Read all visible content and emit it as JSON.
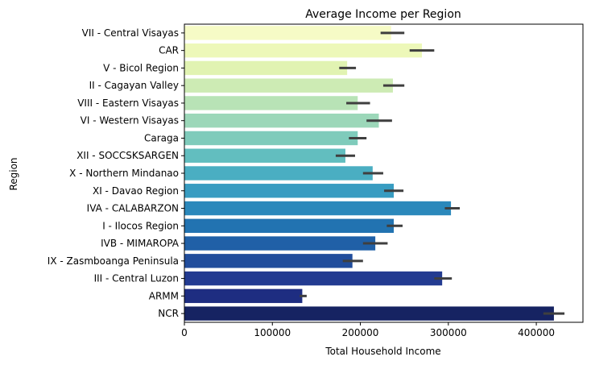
{
  "chart_data": {
    "type": "bar",
    "orientation": "horizontal",
    "title": "Average Income per Region",
    "xlabel": "Total Household Income",
    "ylabel": "Region",
    "xlim": [
      0,
      453000
    ],
    "xticks": [
      0,
      100000,
      200000,
      300000,
      400000
    ],
    "xtick_labels": [
      "0",
      "100000",
      "200000",
      "300000",
      "400000"
    ],
    "grid": false,
    "categories": [
      "VII - Central Visayas",
      "CAR",
      "V - Bicol Region",
      "II - Cagayan Valley",
      "VIII - Eastern Visayas",
      "VI - Western Visayas",
      "Caraga",
      "XII - SOCCSKSARGEN",
      "X - Northern Mindanao",
      "XI - Davao Region",
      "IVA - CALABARZON",
      "I - Ilocos Region",
      "IVB - MIMAROPA",
      "IX - Zasmboanga Peninsula",
      "III - Central Luzon",
      "ARMM",
      "NCR"
    ],
    "values": [
      235000,
      270000,
      185000,
      237000,
      197000,
      221000,
      197000,
      183000,
      214000,
      238000,
      303000,
      238000,
      217000,
      191000,
      293000,
      134000,
      420000
    ],
    "error_low": [
      223000,
      256000,
      176000,
      226000,
      184000,
      207000,
      187000,
      172000,
      203000,
      227000,
      296000,
      230000,
      203000,
      180000,
      284000,
      131000,
      408000
    ],
    "error_high": [
      250000,
      284000,
      195000,
      250000,
      211000,
      236000,
      207000,
      194000,
      226000,
      249000,
      313000,
      248000,
      231000,
      203000,
      304000,
      139000,
      432000
    ],
    "colors": [
      "#f6fbc6",
      "#edf8b9",
      "#e1f3b2",
      "#cdebb4",
      "#b8e3b6",
      "#9cd7b9",
      "#7fcbbb",
      "#62bebf",
      "#4aaec2",
      "#389cc1",
      "#2b88bb",
      "#2273b1",
      "#2060a7",
      "#214d9c",
      "#233b91",
      "#1e2d81",
      "#162362"
    ],
    "errorbar_color": "#3f3f3f"
  }
}
